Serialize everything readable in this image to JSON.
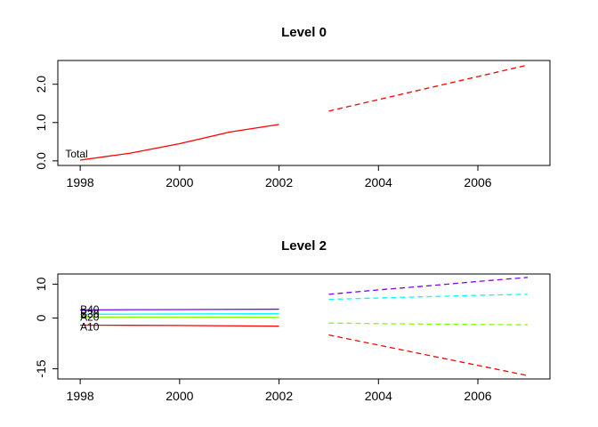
{
  "page": {
    "background": "#ffffff"
  },
  "chart_data": [
    {
      "type": "line",
      "title": "Level 0",
      "xlabel": "",
      "ylabel": "",
      "xlim": [
        1997.55,
        2007.45
      ],
      "ylim": [
        -0.12,
        2.62
      ],
      "x_ticks": [
        1998,
        2000,
        2002,
        2004,
        2006
      ],
      "y_ticks": [
        0.0,
        1.0,
        2.0
      ],
      "y_tick_labels": [
        "0.0",
        "1.0",
        "2.0"
      ],
      "grid": false,
      "legend_position": "none",
      "series": [
        {
          "name": "Total",
          "color": "#ff0000",
          "history": {
            "x": [
              1998,
              1999,
              2000,
              2001,
              2002
            ],
            "y": [
              0.02,
              0.2,
              0.45,
              0.75,
              0.95
            ]
          },
          "forecast": {
            "x": [
              2003,
              2004,
              2005,
              2006,
              2007
            ],
            "y": [
              1.3,
              1.6,
              1.9,
              2.2,
              2.5
            ]
          }
        }
      ],
      "labels": [
        {
          "text": "Total",
          "x": 1997.7,
          "y": 0.18
        }
      ]
    },
    {
      "type": "line",
      "title": "Level 2",
      "xlabel": "",
      "ylabel": "",
      "xlim": [
        1997.55,
        2007.45
      ],
      "ylim": [
        -18,
        13
      ],
      "x_ticks": [
        1998,
        2000,
        2002,
        2004,
        2006
      ],
      "y_ticks": [
        10,
        0,
        -15
      ],
      "y_tick_labels": [
        "10",
        "0",
        "-15"
      ],
      "grid": false,
      "legend_position": "none",
      "series": [
        {
          "name": "B40",
          "color": "#8000ff",
          "history": {
            "x": [
              1998,
              1999,
              2000,
              2001,
              2002
            ],
            "y": [
              2.4,
              2.45,
              2.5,
              2.55,
              2.6
            ]
          },
          "forecast": {
            "x": [
              2003,
              2004,
              2005,
              2006,
              2007
            ],
            "y": [
              7.0,
              8.3,
              9.5,
              10.8,
              12.0
            ]
          }
        },
        {
          "name": "B30",
          "color": "#00ffff",
          "history": {
            "x": [
              1998,
              1999,
              2000,
              2001,
              2002
            ],
            "y": [
              1.1,
              1.15,
              1.2,
              1.25,
              1.3
            ]
          },
          "forecast": {
            "x": [
              2003,
              2004,
              2005,
              2006,
              2007
            ],
            "y": [
              5.5,
              5.9,
              6.3,
              6.7,
              7.0
            ]
          }
        },
        {
          "name": "A20",
          "color": "#80ff00",
          "history": {
            "x": [
              1998,
              1999,
              2000,
              2001,
              2002
            ],
            "y": [
              0.3,
              0.3,
              0.25,
              0.25,
              0.2
            ]
          },
          "forecast": {
            "x": [
              2003,
              2004,
              2005,
              2006,
              2007
            ],
            "y": [
              -1.5,
              -1.65,
              -1.8,
              -1.9,
              -2.0
            ]
          }
        },
        {
          "name": "A10",
          "color": "#ff0000",
          "history": {
            "x": [
              1998,
              1999,
              2000,
              2001,
              2002
            ],
            "y": [
              -2.1,
              -2.15,
              -2.2,
              -2.3,
              -2.4
            ]
          },
          "forecast": {
            "x": [
              2003,
              2004,
              2005,
              2006,
              2007
            ],
            "y": [
              -5.0,
              -8.0,
              -11.0,
              -14.0,
              -17.0
            ]
          }
        }
      ],
      "labels": [
        {
          "text": "B40",
          "x": 1998,
          "y": 2.5
        },
        {
          "text": "B30",
          "x": 1998,
          "y": 1.2
        },
        {
          "text": "A20",
          "x": 1998,
          "y": 0.2
        },
        {
          "text": "A10",
          "x": 1998,
          "y": -2.6
        }
      ]
    }
  ]
}
